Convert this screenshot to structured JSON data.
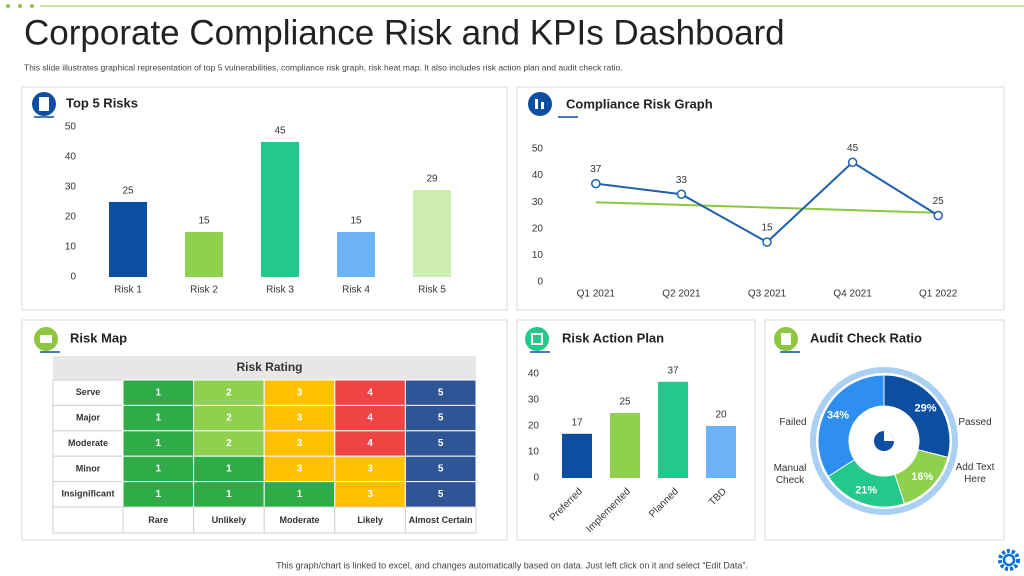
{
  "header": {
    "title": "Corporate Compliance Risk and KPIs Dashboard",
    "subtitle": "This slide illustrates graphical representation of top 5 vulnerabilities, compliance risk graph, risk heat map. It also includes risk action plan and audit check ratio."
  },
  "footer": "This graph/chart is linked to excel, and changes automatically based on data. Just left click on it and select “Edit Data”.",
  "chart_data": [
    {
      "type": "bar",
      "title": "Top 5 Risks",
      "categories": [
        "Risk 1",
        "Risk 2",
        "Risk 3",
        "Risk 4",
        "Risk 5"
      ],
      "values": [
        25,
        15,
        45,
        15,
        29
      ],
      "colors": [
        "#0b4ea2",
        "#8fd14f",
        "#22c98a",
        "#6cb3f7",
        "#cdeeb0"
      ],
      "ylim": [
        0,
        50
      ],
      "yticks": [
        0,
        10,
        20,
        30,
        40,
        50
      ]
    },
    {
      "type": "line",
      "title": "Compliance Risk Graph",
      "categories": [
        "Q1 2021",
        "Q2 2021",
        "Q3 2021",
        "Q4 2021",
        "Q1 2022"
      ],
      "series": [
        {
          "color": "#1f5fae",
          "values": [
            37,
            33,
            15,
            45,
            25
          ],
          "marker": true,
          "data_labels": true
        },
        {
          "color": "#8dc63f",
          "values": [
            30,
            29,
            28,
            27,
            26
          ],
          "marker": false,
          "data_labels": false
        }
      ],
      "ylim": [
        0,
        50
      ],
      "yticks": [
        0,
        10,
        20,
        30,
        40,
        50
      ]
    },
    {
      "type": "bar",
      "title": "Risk Action Plan",
      "categories": [
        "Preferred",
        "Implemented",
        "Planned",
        "TBD"
      ],
      "values": [
        17,
        25,
        37,
        20
      ],
      "colors": [
        "#0b4ea2",
        "#8fd14f",
        "#22c98a",
        "#6cb3f7"
      ],
      "ylim": [
        0,
        40
      ],
      "yticks": [
        0,
        10,
        20,
        30,
        40
      ]
    },
    {
      "type": "donut",
      "title": "Audit Check Ratio",
      "categories": [
        "Passed",
        "Add Text Here",
        "Manual Check",
        "Failed"
      ],
      "values": [
        29,
        16,
        21,
        34
      ],
      "value_labels": [
        "29%",
        "16%",
        "21%",
        "34%"
      ],
      "colors": [
        "#0b4ea2",
        "#8fd14f",
        "#22c98a",
        "#2f8ff0"
      ]
    }
  ],
  "risk_map": {
    "title": "Risk Map",
    "heading": "Risk Rating",
    "rows": [
      "Serve",
      "Major",
      "Moderate",
      "Minor",
      "Insignificant"
    ],
    "columns": [
      "Rare",
      "Unlikely",
      "Moderate",
      "Likely",
      "Almost Certain"
    ],
    "cells": [
      [
        1,
        2,
        3,
        4,
        5
      ],
      [
        1,
        2,
        3,
        4,
        5
      ],
      [
        1,
        2,
        3,
        4,
        5
      ],
      [
        1,
        1,
        3,
        3,
        5
      ],
      [
        1,
        1,
        1,
        3,
        5
      ]
    ],
    "colors": [
      "#2fab48",
      "#8fd14f",
      "#ffc000",
      "#ee4444",
      "#2f5597"
    ]
  }
}
